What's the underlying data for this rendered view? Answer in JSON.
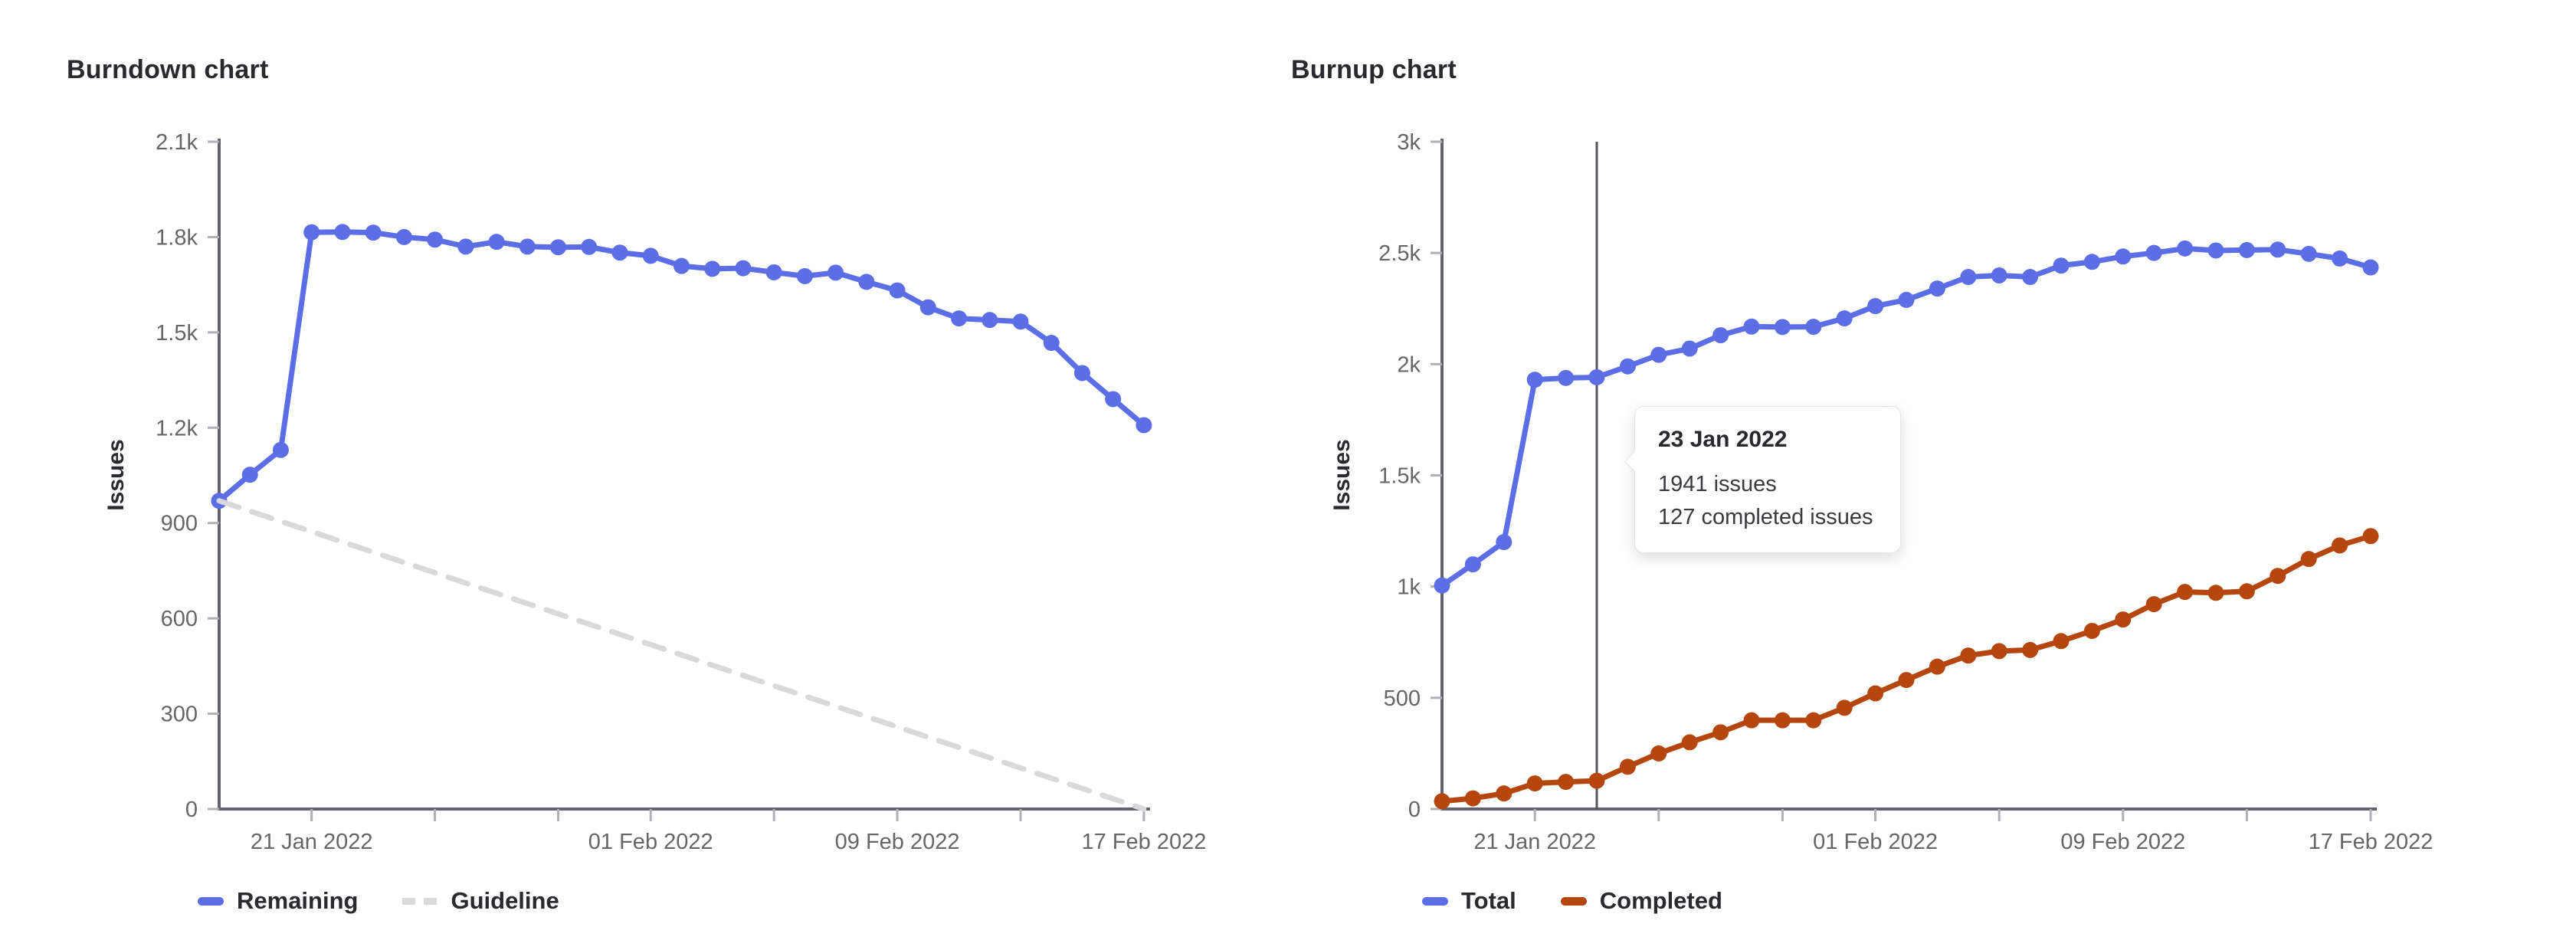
{
  "burndown": {
    "title": "Burndown chart",
    "ylabel": "Issues",
    "legend": [
      {
        "label": "Remaining",
        "type": "solid",
        "color": "#5c6ee6"
      },
      {
        "label": "Guideline",
        "type": "dashed",
        "color": "#d9d9db"
      }
    ]
  },
  "burnup": {
    "title": "Burnup chart",
    "ylabel": "Issues",
    "legend": [
      {
        "label": "Total",
        "type": "solid",
        "color": "#5c6ee6"
      },
      {
        "label": "Completed",
        "type": "solid",
        "color": "#b5470e"
      }
    ]
  },
  "tooltip": {
    "title": "23 Jan 2022",
    "lines": [
      "1941 issues",
      "127 completed issues"
    ]
  },
  "colors": {
    "blue": "#5c6ee6",
    "orange": "#b5470e",
    "guideline": "#d9d9db",
    "axis_line": "#62626a",
    "tick_mark": "#b0b0b6",
    "tick_label": "#666666",
    "crosshair": "#54545b"
  },
  "chart_data": [
    {
      "type": "line",
      "title": "Burndown chart",
      "xlabel": "",
      "ylabel": "Issues",
      "ylim": [
        0,
        2100
      ],
      "grid": false,
      "legend_position": "bottom",
      "x_dates": [
        "18 Jan 2022",
        "19 Jan 2022",
        "20 Jan 2022",
        "21 Jan 2022",
        "22 Jan 2022",
        "23 Jan 2022",
        "24 Jan 2022",
        "25 Jan 2022",
        "26 Jan 2022",
        "27 Jan 2022",
        "28 Jan 2022",
        "29 Jan 2022",
        "30 Jan 2022",
        "31 Jan 2022",
        "01 Feb 2022",
        "02 Feb 2022",
        "03 Feb 2022",
        "04 Feb 2022",
        "05 Feb 2022",
        "06 Feb 2022",
        "07 Feb 2022",
        "08 Feb 2022",
        "09 Feb 2022",
        "10 Feb 2022",
        "11 Feb 2022",
        "12 Feb 2022",
        "13 Feb 2022",
        "14 Feb 2022",
        "15 Feb 2022",
        "16 Feb 2022",
        "17 Feb 2022"
      ],
      "x_ticks": [
        {
          "day": 3,
          "label": "21 Jan 2022"
        },
        {
          "day": 7,
          "label": ""
        },
        {
          "day": 11,
          "label": ""
        },
        {
          "day": 14,
          "label": "01 Feb 2022"
        },
        {
          "day": 18,
          "label": ""
        },
        {
          "day": 22,
          "label": "09 Feb 2022"
        },
        {
          "day": 26,
          "label": ""
        },
        {
          "day": 30,
          "label": "17 Feb 2022"
        }
      ],
      "y_ticks": [
        {
          "v": 0,
          "label": "0"
        },
        {
          "v": 300,
          "label": "300"
        },
        {
          "v": 600,
          "label": "600"
        },
        {
          "v": 900,
          "label": "900"
        },
        {
          "v": 1200,
          "label": "1.2k"
        },
        {
          "v": 1500,
          "label": "1.5k"
        },
        {
          "v": 1800,
          "label": "1.8k"
        },
        {
          "v": 2100,
          "label": "2.1k"
        }
      ],
      "series": [
        {
          "name": "Remaining",
          "color": "#5c6ee6",
          "style": "solid",
          "points": true,
          "values": [
            970,
            1052,
            1130,
            1815,
            1816,
            1814,
            1800,
            1792,
            1770,
            1785,
            1770,
            1768,
            1769,
            1751,
            1741,
            1709,
            1700,
            1702,
            1689,
            1677,
            1688,
            1659,
            1632,
            1579,
            1544,
            1539,
            1534,
            1467,
            1372,
            1290,
            1208
          ]
        },
        {
          "name": "Guideline",
          "color": "#d9d9db",
          "style": "dashed",
          "points": false,
          "endpoints": [
            970,
            0
          ]
        }
      ]
    },
    {
      "type": "line",
      "title": "Burnup chart",
      "xlabel": "",
      "ylabel": "Issues",
      "ylim": [
        0,
        3000
      ],
      "grid": false,
      "legend_position": "bottom",
      "x_dates": [
        "18 Jan 2022",
        "19 Jan 2022",
        "20 Jan 2022",
        "21 Jan 2022",
        "22 Jan 2022",
        "23 Jan 2022",
        "24 Jan 2022",
        "25 Jan 2022",
        "26 Jan 2022",
        "27 Jan 2022",
        "28 Jan 2022",
        "29 Jan 2022",
        "30 Jan 2022",
        "31 Jan 2022",
        "01 Feb 2022",
        "02 Feb 2022",
        "03 Feb 2022",
        "04 Feb 2022",
        "05 Feb 2022",
        "06 Feb 2022",
        "07 Feb 2022",
        "08 Feb 2022",
        "09 Feb 2022",
        "10 Feb 2022",
        "11 Feb 2022",
        "12 Feb 2022",
        "13 Feb 2022",
        "14 Feb 2022",
        "15 Feb 2022",
        "16 Feb 2022",
        "17 Feb 2022"
      ],
      "x_ticks": [
        {
          "day": 3,
          "label": "21 Jan 2022"
        },
        {
          "day": 7,
          "label": ""
        },
        {
          "day": 11,
          "label": ""
        },
        {
          "day": 14,
          "label": "01 Feb 2022"
        },
        {
          "day": 18,
          "label": ""
        },
        {
          "day": 22,
          "label": "09 Feb 2022"
        },
        {
          "day": 26,
          "label": ""
        },
        {
          "day": 30,
          "label": "17 Feb 2022"
        }
      ],
      "y_ticks": [
        {
          "v": 0,
          "label": "0"
        },
        {
          "v": 500,
          "label": "500"
        },
        {
          "v": 1000,
          "label": "1k"
        },
        {
          "v": 1500,
          "label": "1.5k"
        },
        {
          "v": 2000,
          "label": "2k"
        },
        {
          "v": 2500,
          "label": "2.5k"
        },
        {
          "v": 3000,
          "label": "3k"
        }
      ],
      "series": [
        {
          "name": "Total",
          "color": "#5c6ee6",
          "style": "solid",
          "points": true,
          "values": [
            1005,
            1100,
            1200,
            1930,
            1938,
            1941,
            1990,
            2042,
            2070,
            2130,
            2169,
            2167,
            2168,
            2206,
            2261,
            2289,
            2340,
            2392,
            2399,
            2392,
            2443,
            2460,
            2484,
            2500,
            2520,
            2511,
            2513,
            2515,
            2496,
            2475,
            2435
          ]
        },
        {
          "name": "Completed",
          "color": "#b5470e",
          "style": "solid",
          "points": true,
          "values": [
            35,
            48,
            70,
            115,
            122,
            127,
            190,
            250,
            300,
            345,
            399,
            399,
            399,
            455,
            520,
            580,
            640,
            690,
            710,
            715,
            755,
            801,
            852,
            921,
            976,
            972,
            979,
            1048,
            1124,
            1185,
            1227
          ]
        }
      ],
      "annotation": {
        "crosshair_index": 5,
        "crosshair_date": "23 Jan 2022",
        "tooltip": {
          "title": "23 Jan 2022",
          "total": 1941,
          "completed": 127,
          "lines": [
            "1941 issues",
            "127 completed issues"
          ]
        }
      }
    }
  ]
}
